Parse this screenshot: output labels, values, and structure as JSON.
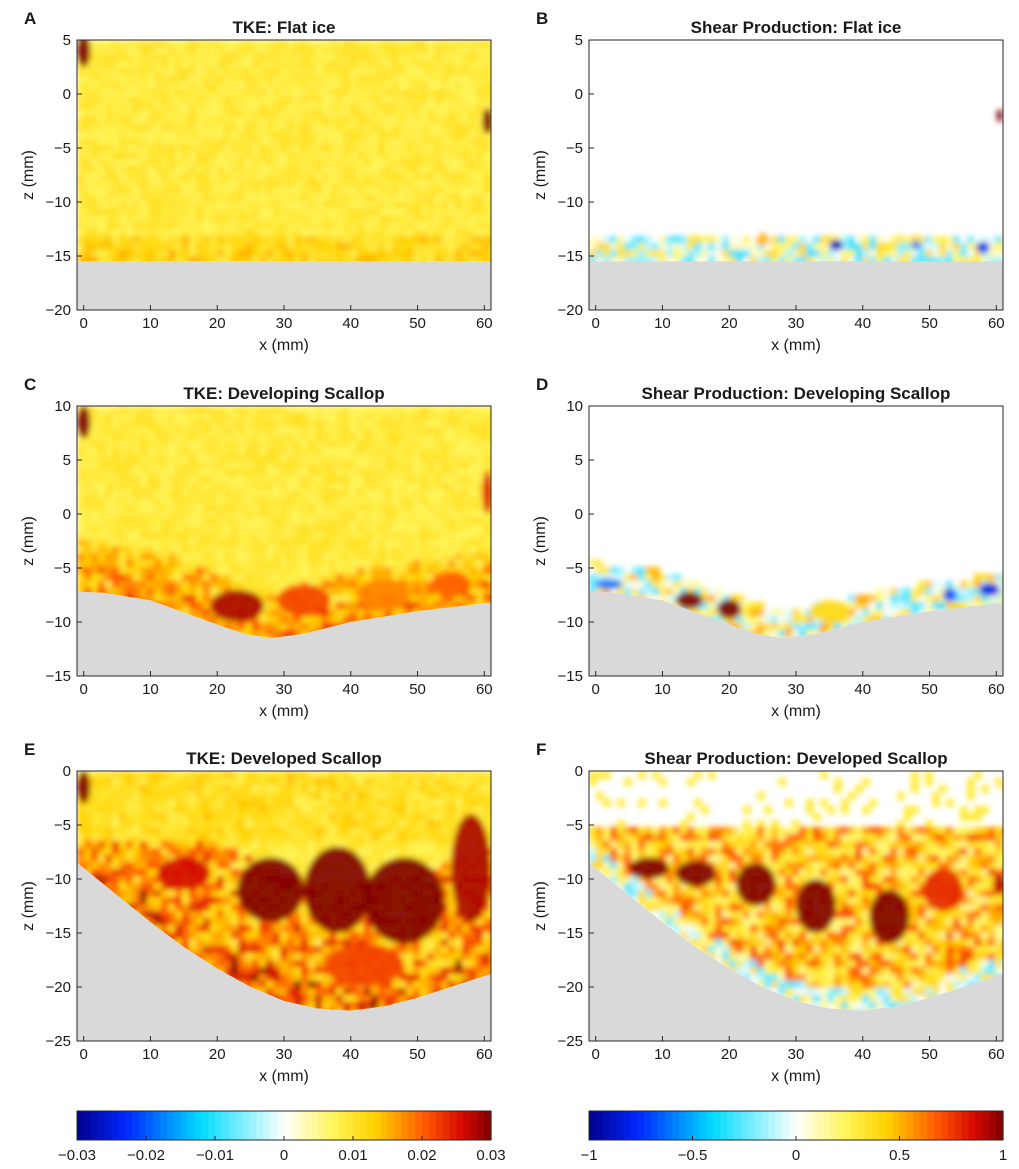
{
  "chart_data": [
    {
      "id": "A",
      "type": "heatmap",
      "panel_label": "A",
      "title": "TKE: Flat ice",
      "xlabel": "x (mm)",
      "ylabel": "z (mm)",
      "xlim": [
        -1,
        61
      ],
      "ylim": [
        -20,
        5
      ],
      "xticks": [
        0,
        10,
        20,
        30,
        40,
        50,
        60
      ],
      "yticks": [
        5,
        0,
        -5,
        -10,
        -15,
        -20
      ],
      "colorbar": "tke",
      "surface": {
        "kind": "flat",
        "z": -15.5
      },
      "hotspots": [
        {
          "x": 0,
          "z": 4,
          "v": 0.03,
          "sx": 1,
          "sz": 1.5
        },
        {
          "x": 60.5,
          "z": -2.5,
          "v": 0.03,
          "sx": 0.8,
          "sz": 1.2
        },
        {
          "x": 25,
          "z": -13,
          "v": 0.012,
          "sx": 1,
          "sz": 0.6
        },
        {
          "x": 37,
          "z": -14.5,
          "v": 0.012,
          "sx": 1.5,
          "sz": 0.5
        }
      ]
    },
    {
      "id": "B",
      "type": "heatmap",
      "panel_label": "B",
      "title": "Shear Production: Flat ice",
      "xlabel": "x (mm)",
      "ylabel": "z (mm)",
      "xlim": [
        -1,
        61
      ],
      "ylim": [
        -20,
        5
      ],
      "xticks": [
        0,
        10,
        20,
        30,
        40,
        50,
        60
      ],
      "yticks": [
        5,
        0,
        -5,
        -10,
        -15,
        -20
      ],
      "colorbar": "shear",
      "surface": {
        "kind": "flat",
        "z": -15.5
      },
      "hotspots": [
        {
          "x": 60.5,
          "z": -2,
          "v": 1,
          "sx": 0.5,
          "sz": 0.6
        },
        {
          "x": 36,
          "z": -14,
          "v": -0.9,
          "sx": 1,
          "sz": 0.5
        },
        {
          "x": 48,
          "z": -14,
          "v": -0.6,
          "sx": 0.7,
          "sz": 0.4
        },
        {
          "x": 58,
          "z": -14.2,
          "v": -0.8,
          "sx": 1,
          "sz": 0.5
        },
        {
          "x": 25,
          "z": -13.5,
          "v": 0.5,
          "sx": 1,
          "sz": 0.6
        }
      ]
    },
    {
      "id": "C",
      "type": "heatmap",
      "panel_label": "C",
      "title": "TKE: Developing Scallop",
      "xlabel": "x (mm)",
      "ylabel": "z (mm)",
      "xlim": [
        -1,
        61
      ],
      "ylim": [
        -15,
        10
      ],
      "xticks": [
        0,
        10,
        20,
        30,
        40,
        50,
        60
      ],
      "yticks": [
        10,
        5,
        0,
        -5,
        -10,
        -15
      ],
      "colorbar": "tke",
      "surface": {
        "kind": "profile",
        "x": [
          -1,
          3,
          10,
          18,
          24,
          28,
          33,
          40,
          50,
          61
        ],
        "z": [
          -7.2,
          -7.3,
          -8,
          -9.8,
          -11.1,
          -11.5,
          -11.1,
          -10,
          -9,
          -8.2
        ]
      },
      "hotspots": [
        {
          "x": 0,
          "z": 8.5,
          "v": 0.03,
          "sx": 1,
          "sz": 1.5
        },
        {
          "x": 60.5,
          "z": 2,
          "v": 0.025,
          "sx": 0.8,
          "sz": 2
        },
        {
          "x": 23,
          "z": -8.5,
          "v": 0.028,
          "sx": 4,
          "sz": 1.5
        },
        {
          "x": 33,
          "z": -8,
          "v": 0.022,
          "sx": 4,
          "sz": 1.5
        },
        {
          "x": 45,
          "z": -7.5,
          "v": 0.018,
          "sx": 4,
          "sz": 1.5
        },
        {
          "x": 55,
          "z": -6.5,
          "v": 0.02,
          "sx": 3,
          "sz": 1.2
        }
      ]
    },
    {
      "id": "D",
      "type": "heatmap",
      "panel_label": "D",
      "title": "Shear Production: Developing Scallop",
      "xlabel": "x (mm)",
      "ylabel": "z (mm)",
      "xlim": [
        -1,
        61
      ],
      "ylim": [
        -15,
        10
      ],
      "xticks": [
        0,
        10,
        20,
        30,
        40,
        50,
        60
      ],
      "yticks": [
        10,
        5,
        0,
        -5,
        -10,
        -15
      ],
      "colorbar": "shear",
      "surface": {
        "kind": "profile",
        "x": [
          -1,
          3,
          10,
          18,
          24,
          28,
          33,
          40,
          50,
          61
        ],
        "z": [
          -7.2,
          -7.3,
          -8,
          -9.8,
          -11.1,
          -11.5,
          -11.1,
          -10,
          -9,
          -8.2
        ]
      },
      "hotspots": [
        {
          "x": 14,
          "z": -8,
          "v": 1,
          "sx": 2,
          "sz": 0.8
        },
        {
          "x": 20,
          "z": -8.8,
          "v": 1,
          "sx": 1.8,
          "sz": 0.9
        },
        {
          "x": 2,
          "z": -6.5,
          "v": -0.6,
          "sx": 2,
          "sz": 0.5
        },
        {
          "x": 53,
          "z": -7.5,
          "v": -0.7,
          "sx": 1,
          "sz": 0.6
        },
        {
          "x": 59,
          "z": -7,
          "v": -0.8,
          "sx": 1.5,
          "sz": 0.6
        },
        {
          "x": 35,
          "z": -9,
          "v": 0.4,
          "sx": 3,
          "sz": 1
        }
      ]
    },
    {
      "id": "E",
      "type": "heatmap",
      "panel_label": "E",
      "title": "TKE: Developed Scallop",
      "xlabel": "x (mm)",
      "ylabel": "z (mm)",
      "xlim": [
        -1,
        61
      ],
      "ylim": [
        -25,
        0
      ],
      "xticks": [
        0,
        10,
        20,
        30,
        40,
        50,
        60
      ],
      "yticks": [
        0,
        -5,
        -10,
        -15,
        -20,
        -25
      ],
      "colorbar": "tke",
      "surface": {
        "kind": "profile",
        "x": [
          -1,
          5,
          10,
          15,
          20,
          25,
          30,
          35,
          40,
          45,
          50,
          55,
          61
        ],
        "z": [
          -8.5,
          -11.5,
          -14,
          -16.3,
          -18.3,
          -20,
          -21.3,
          -22,
          -22.2,
          -21.8,
          -21,
          -20,
          -18.8
        ]
      },
      "hotspots": [
        {
          "x": 0,
          "z": -1.5,
          "v": 0.03,
          "sx": 1,
          "sz": 1.5
        },
        {
          "x": 15,
          "z": -9.5,
          "v": 0.026,
          "sx": 4,
          "sz": 1.5
        },
        {
          "x": 28,
          "z": -11,
          "v": 0.03,
          "sx": 5,
          "sz": 3
        },
        {
          "x": 38,
          "z": -11,
          "v": 0.032,
          "sx": 5,
          "sz": 4
        },
        {
          "x": 48,
          "z": -12,
          "v": 0.03,
          "sx": 6,
          "sz": 4
        },
        {
          "x": 58,
          "z": -9,
          "v": 0.028,
          "sx": 3,
          "sz": 5
        },
        {
          "x": 42,
          "z": -18,
          "v": 0.022,
          "sx": 6,
          "sz": 2
        }
      ]
    },
    {
      "id": "F",
      "type": "heatmap",
      "panel_label": "F",
      "title": "Shear Production: Developed Scallop",
      "xlabel": "x (mm)",
      "ylabel": "z (mm)",
      "xlim": [
        -1,
        61
      ],
      "ylim": [
        -25,
        0
      ],
      "xticks": [
        0,
        10,
        20,
        30,
        40,
        50,
        60
      ],
      "yticks": [
        0,
        -5,
        -10,
        -15,
        -20,
        -25
      ],
      "colorbar": "shear",
      "surface": {
        "kind": "profile",
        "x": [
          -1,
          5,
          10,
          15,
          20,
          25,
          30,
          35,
          40,
          45,
          50,
          55,
          61
        ],
        "z": [
          -8.5,
          -11.5,
          -14,
          -16.3,
          -18.3,
          -20,
          -21.3,
          -22,
          -22.2,
          -21.8,
          -21,
          -20,
          -18.8
        ]
      },
      "hotspots": [
        {
          "x": 8,
          "z": -9,
          "v": 1,
          "sx": 3,
          "sz": 1
        },
        {
          "x": 15,
          "z": -9.5,
          "v": 1,
          "sx": 3,
          "sz": 1.2
        },
        {
          "x": 24,
          "z": -10.5,
          "v": 1,
          "sx": 3,
          "sz": 2
        },
        {
          "x": 33,
          "z": -12.5,
          "v": 1,
          "sx": 3,
          "sz": 2.5
        },
        {
          "x": 44,
          "z": -13.5,
          "v": 1,
          "sx": 3,
          "sz": 2.5
        },
        {
          "x": 52,
          "z": -11,
          "v": 0.8,
          "sx": 3,
          "sz": 2
        },
        {
          "x": 60.5,
          "z": -10.5,
          "v": 0.9,
          "sx": 1,
          "sz": 1
        }
      ]
    }
  ],
  "colorbars": [
    {
      "id": "tke",
      "range": [
        -0.03,
        0.03
      ],
      "ticks": [
        "-0.03",
        "-0.02",
        "-0.01",
        "0",
        "0.01",
        "0.02",
        "0.03"
      ],
      "tick_values": [
        -0.03,
        -0.02,
        -0.01,
        0,
        0.01,
        0.02,
        0.03
      ]
    },
    {
      "id": "shear",
      "range": [
        -1,
        1
      ],
      "ticks": [
        "-1",
        "-0.5",
        "0",
        "0.5",
        "1"
      ],
      "tick_values": [
        -1,
        -0.5,
        0,
        0.5,
        1
      ]
    }
  ],
  "colors": {
    "surface": "#d9d9d9",
    "axis": "#262626"
  }
}
